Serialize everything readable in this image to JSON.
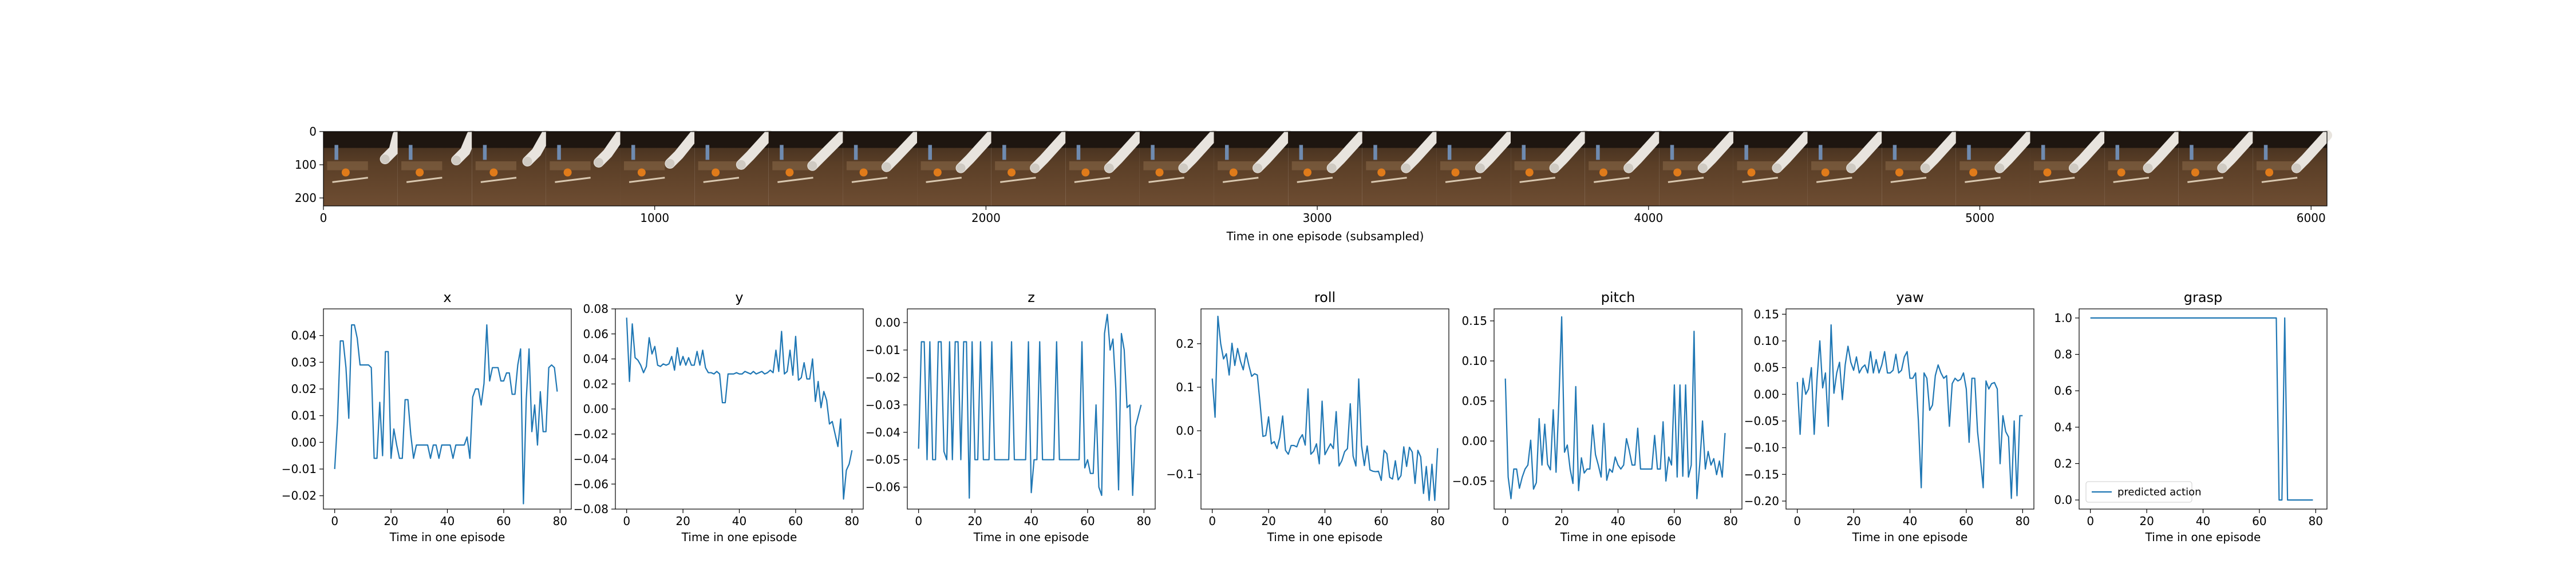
{
  "figure": {
    "filmstrip": {
      "xlabel": "Time in one episode (subsampled)",
      "xticks": [
        0,
        1000,
        2000,
        3000,
        4000,
        5000,
        6000
      ],
      "xlim": [
        0,
        6048
      ],
      "yticks": [
        0,
        100,
        200
      ],
      "ylim": [
        224,
        0
      ],
      "frame_count": 27,
      "frame_width": 224
    }
  },
  "chart_data": [
    {
      "type": "line",
      "title": "x",
      "xlabel": "Time in one episode",
      "xticks": [
        0,
        20,
        40,
        60,
        80
      ],
      "xlim": [
        -4,
        84
      ],
      "yticks": [
        -0.02,
        -0.01,
        0.0,
        0.01,
        0.02,
        0.03,
        0.04
      ],
      "ylim": [
        -0.025,
        0.05
      ],
      "colors": {
        "line": "#1f77b4"
      },
      "values": [
        -0.01,
        0.008,
        0.038,
        0.038,
        0.028,
        0.009,
        0.044,
        0.044,
        0.039,
        0.029,
        0.029,
        0.029,
        0.029,
        0.028,
        -0.006,
        -0.006,
        0.015,
        -0.005,
        0.034,
        0.034,
        -0.006,
        0.005,
        -0.001,
        -0.006,
        -0.006,
        0.016,
        0.016,
        0.003,
        -0.006,
        -0.001,
        -0.001,
        -0.001,
        -0.001,
        -0.001,
        -0.006,
        -0.001,
        -0.001,
        -0.006,
        -0.001,
        -0.001,
        -0.001,
        -0.001,
        -0.006,
        -0.001,
        -0.001,
        -0.001,
        -0.001,
        0.002,
        -0.006,
        0.017,
        0.02,
        0.02,
        0.014,
        0.022,
        0.044,
        0.023,
        0.028,
        0.028,
        0.028,
        0.023,
        0.023,
        0.026,
        0.026,
        0.018,
        0.018,
        0.029,
        0.035,
        -0.023,
        0.016,
        0.035,
        0.004,
        0.014,
        -0.001,
        0.019,
        0.004,
        0.004,
        0.028,
        0.029,
        0.028,
        0.019
      ]
    },
    {
      "type": "line",
      "title": "y",
      "xlabel": "Time in one episode",
      "xticks": [
        0,
        20,
        40,
        60,
        80
      ],
      "xlim": [
        -4,
        84
      ],
      "yticks": [
        -0.08,
        -0.06,
        -0.04,
        -0.02,
        0.0,
        0.02,
        0.04,
        0.06,
        0.08
      ],
      "ylim": [
        -0.08,
        0.08
      ],
      "colors": {
        "line": "#1f77b4"
      },
      "values": [
        0.073,
        0.022,
        0.068,
        0.041,
        0.039,
        0.035,
        0.029,
        0.034,
        0.057,
        0.044,
        0.05,
        0.035,
        0.034,
        0.036,
        0.035,
        0.036,
        0.042,
        0.031,
        0.049,
        0.035,
        0.042,
        0.035,
        0.041,
        0.035,
        0.035,
        0.046,
        0.035,
        0.047,
        0.033,
        0.029,
        0.029,
        0.028,
        0.03,
        0.028,
        0.005,
        0.005,
        0.028,
        0.028,
        0.028,
        0.029,
        0.028,
        0.028,
        0.03,
        0.029,
        0.028,
        0.03,
        0.028,
        0.029,
        0.03,
        0.028,
        0.029,
        0.031,
        0.029,
        0.047,
        0.03,
        0.062,
        0.028,
        0.03,
        0.047,
        0.027,
        0.058,
        0.023,
        0.025,
        0.037,
        0.024,
        0.024,
        0.04,
        0.006,
        0.022,
        0.001,
        0.014,
        0.007,
        -0.012,
        -0.01,
        -0.02,
        -0.03,
        -0.008,
        -0.072,
        -0.049,
        -0.044,
        -0.033
      ]
    },
    {
      "type": "line",
      "title": "z",
      "xlabel": "Time in one episode",
      "xticks": [
        0,
        20,
        40,
        60,
        80
      ],
      "xlim": [
        -4,
        84
      ],
      "yticks": [
        -0.06,
        -0.05,
        -0.04,
        -0.03,
        -0.02,
        -0.01,
        0.0
      ],
      "ylim": [
        -0.068,
        0.005
      ],
      "colors": {
        "line": "#1f77b4"
      },
      "values": [
        -0.046,
        -0.007,
        -0.007,
        -0.05,
        -0.007,
        -0.05,
        -0.05,
        -0.007,
        -0.007,
        -0.047,
        -0.05,
        -0.007,
        -0.05,
        -0.007,
        -0.007,
        -0.05,
        -0.007,
        -0.007,
        -0.064,
        -0.007,
        -0.05,
        -0.05,
        -0.007,
        -0.05,
        -0.05,
        -0.05,
        -0.007,
        -0.05,
        -0.05,
        -0.05,
        -0.05,
        -0.05,
        -0.05,
        -0.007,
        -0.05,
        -0.05,
        -0.05,
        -0.05,
        -0.05,
        -0.007,
        -0.062,
        -0.05,
        -0.05,
        -0.007,
        -0.05,
        -0.05,
        -0.05,
        -0.05,
        -0.05,
        -0.007,
        -0.05,
        -0.05,
        -0.05,
        -0.05,
        -0.05,
        -0.05,
        -0.05,
        -0.05,
        -0.007,
        -0.053,
        -0.05,
        -0.055,
        -0.055,
        -0.03,
        -0.06,
        -0.063,
        -0.004,
        0.003,
        -0.01,
        -0.006,
        -0.024,
        -0.061,
        -0.004,
        -0.01,
        -0.031,
        -0.03,
        -0.063,
        -0.038,
        -0.034,
        -0.03
      ]
    },
    {
      "type": "line",
      "title": "roll",
      "xlabel": "Time in one episode",
      "xticks": [
        0,
        20,
        40,
        60,
        80
      ],
      "xlim": [
        -4,
        84
      ],
      "yticks": [
        -0.1,
        0.0,
        0.1,
        0.2
      ],
      "ylim": [
        -0.18,
        0.28
      ],
      "colors": {
        "line": "#1f77b4"
      },
      "values": [
        0.12,
        0.031,
        0.263,
        0.2,
        0.165,
        0.177,
        0.128,
        0.201,
        0.15,
        0.189,
        0.16,
        0.14,
        0.179,
        0.15,
        0.125,
        0.131,
        0.128,
        0.061,
        -0.013,
        -0.011,
        0.032,
        -0.03,
        -0.025,
        -0.041,
        -0.015,
        0.034,
        -0.045,
        -0.054,
        -0.034,
        -0.034,
        -0.037,
        -0.019,
        -0.009,
        -0.033,
        0.096,
        -0.054,
        -0.047,
        -0.03,
        -0.076,
        0.068,
        -0.055,
        -0.042,
        -0.03,
        -0.041,
        0.044,
        -0.081,
        -0.069,
        -0.048,
        -0.041,
        0.062,
        -0.058,
        -0.081,
        0.119,
        -0.034,
        -0.08,
        -0.035,
        -0.09,
        -0.093,
        -0.094,
        -0.093,
        -0.114,
        -0.045,
        -0.053,
        -0.107,
        -0.111,
        -0.069,
        -0.113,
        -0.103,
        -0.037,
        -0.082,
        -0.038,
        -0.049,
        -0.121,
        -0.045,
        -0.06,
        -0.144,
        -0.082,
        -0.16,
        -0.077,
        -0.16,
        -0.04
      ]
    },
    {
      "type": "line",
      "title": "pitch",
      "xlabel": "Time in one episode",
      "xticks": [
        0,
        20,
        40,
        60,
        80
      ],
      "xlim": [
        -4,
        84
      ],
      "yticks": [
        -0.05,
        0.0,
        0.05,
        0.1,
        0.15
      ],
      "ylim": [
        -0.085,
        0.165
      ],
      "colors": {
        "line": "#1f77b4"
      },
      "values": [
        0.078,
        -0.045,
        -0.072,
        -0.035,
        -0.035,
        -0.059,
        -0.045,
        -0.035,
        -0.03,
        0.001,
        -0.06,
        -0.052,
        0.028,
        -0.03,
        0.021,
        -0.029,
        -0.036,
        0.039,
        -0.039,
        0.049,
        0.155,
        -0.014,
        -0.005,
        -0.035,
        -0.053,
        0.068,
        -0.062,
        -0.021,
        -0.04,
        -0.035,
        -0.035,
        0.02,
        -0.017,
        -0.03,
        -0.045,
        0.022,
        -0.049,
        -0.035,
        -0.039,
        -0.02,
        -0.03,
        -0.035,
        -0.03,
        0.003,
        -0.012,
        -0.03,
        -0.03,
        0.016,
        -0.035,
        -0.035,
        -0.035,
        -0.035,
        -0.035,
        0.007,
        -0.035,
        -0.035,
        0.024,
        -0.05,
        -0.02,
        -0.03,
        0.07,
        -0.045,
        0.07,
        -0.044,
        0.07,
        -0.045,
        -0.03,
        0.137,
        -0.072,
        -0.03,
        0.025,
        -0.035,
        -0.013,
        -0.03,
        -0.022,
        -0.042,
        -0.025,
        -0.045,
        0.01
      ]
    },
    {
      "type": "line",
      "title": "yaw",
      "xlabel": "Time in one episode",
      "xticks": [
        0,
        20,
        40,
        60,
        80
      ],
      "xlim": [
        -4,
        84
      ],
      "yticks": [
        -0.2,
        -0.15,
        -0.1,
        -0.05,
        0.0,
        0.05,
        0.1,
        0.15
      ],
      "ylim": [
        -0.215,
        0.16
      ],
      "colors": {
        "line": "#1f77b4"
      },
      "values": [
        0.023,
        -0.075,
        0.03,
        0.0,
        0.01,
        0.05,
        -0.075,
        0.028,
        0.1,
        0.012,
        0.04,
        -0.06,
        0.13,
        0.002,
        0.04,
        0.06,
        -0.01,
        0.055,
        0.09,
        0.06,
        0.045,
        0.07,
        0.04,
        0.05,
        0.055,
        0.04,
        0.08,
        0.04,
        0.065,
        0.04,
        0.055,
        0.08,
        0.04,
        0.04,
        0.045,
        0.075,
        0.04,
        0.045,
        0.07,
        0.08,
        0.03,
        0.03,
        0.04,
        -0.05,
        -0.175,
        0.04,
        0.03,
        -0.03,
        -0.02,
        0.035,
        0.055,
        0.04,
        0.03,
        0.035,
        -0.06,
        0.02,
        0.03,
        0.025,
        0.028,
        0.04,
        0.01,
        -0.09,
        0.03,
        0.03,
        -0.07,
        -0.12,
        -0.175,
        0.025,
        0.01,
        0.02,
        0.022,
        0.01,
        -0.13,
        -0.04,
        -0.07,
        -0.08,
        -0.195,
        -0.05,
        -0.19,
        -0.04,
        -0.04
      ]
    },
    {
      "type": "line",
      "title": "grasp",
      "xlabel": "Time in one episode",
      "xticks": [
        0,
        20,
        40,
        60,
        80
      ],
      "xlim": [
        -4,
        84
      ],
      "yticks": [
        0.0,
        0.2,
        0.4,
        0.6,
        0.8,
        1.0
      ],
      "ylim": [
        -0.05,
        1.05
      ],
      "colors": {
        "line": "#1f77b4"
      },
      "legend": {
        "label": "predicted action",
        "loc": "lower-left"
      },
      "values": [
        1,
        1,
        1,
        1,
        1,
        1,
        1,
        1,
        1,
        1,
        1,
        1,
        1,
        1,
        1,
        1,
        1,
        1,
        1,
        1,
        1,
        1,
        1,
        1,
        1,
        1,
        1,
        1,
        1,
        1,
        1,
        1,
        1,
        1,
        1,
        1,
        1,
        1,
        1,
        1,
        1,
        1,
        1,
        1,
        1,
        1,
        1,
        1,
        1,
        1,
        1,
        1,
        1,
        1,
        1,
        1,
        1,
        1,
        1,
        1,
        1,
        1,
        1,
        1,
        1,
        1,
        1,
        0,
        0,
        1,
        0,
        0,
        0,
        0,
        0,
        0,
        0,
        0,
        0,
        0
      ]
    }
  ]
}
